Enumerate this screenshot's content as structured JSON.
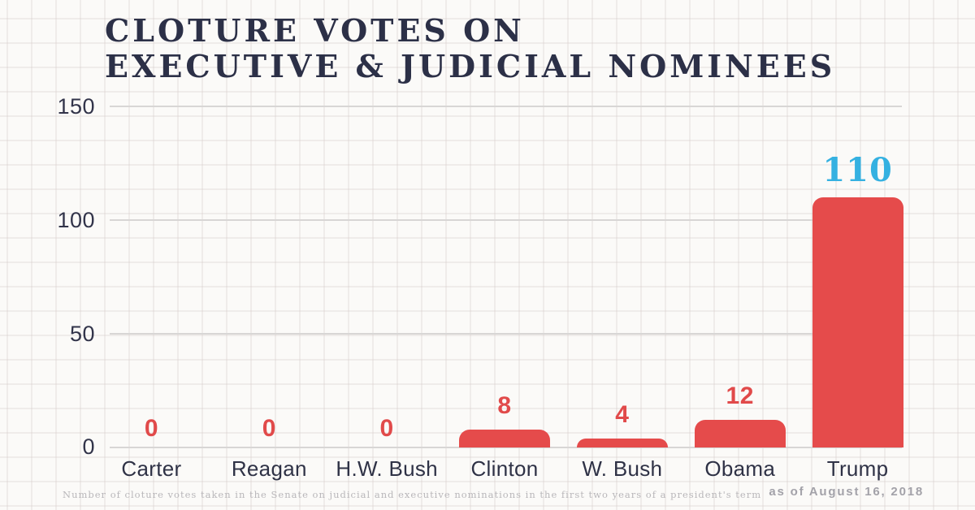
{
  "title": {
    "line1": "CLOTURE VOTES ON",
    "line2": "EXECUTIVE & JUDICIAL NOMINEES"
  },
  "chart_data": {
    "type": "bar",
    "title": "Cloture votes on executive & judicial nominees",
    "categories": [
      "Carter",
      "Reagan",
      "H.W. Bush",
      "Clinton",
      "W. Bush",
      "Obama",
      "Trump"
    ],
    "values": [
      0,
      0,
      0,
      8,
      4,
      12,
      110
    ],
    "xlabel": "",
    "ylabel": "",
    "ylim": [
      0,
      150
    ],
    "yticks": [
      150,
      100,
      50,
      0
    ],
    "grid": "horizontal gridlines on graph-paper background",
    "legend": "none",
    "bar_color": "#e54b4b",
    "label_color": "#e14a4a",
    "highlight_index": 6,
    "highlight_label_color": "#35b1e1"
  },
  "footer": {
    "note": "Number of cloture votes taken in the Senate on judicial and executive nominations in the first two years of a president's term",
    "as_of": "as of August 16, 2018"
  }
}
